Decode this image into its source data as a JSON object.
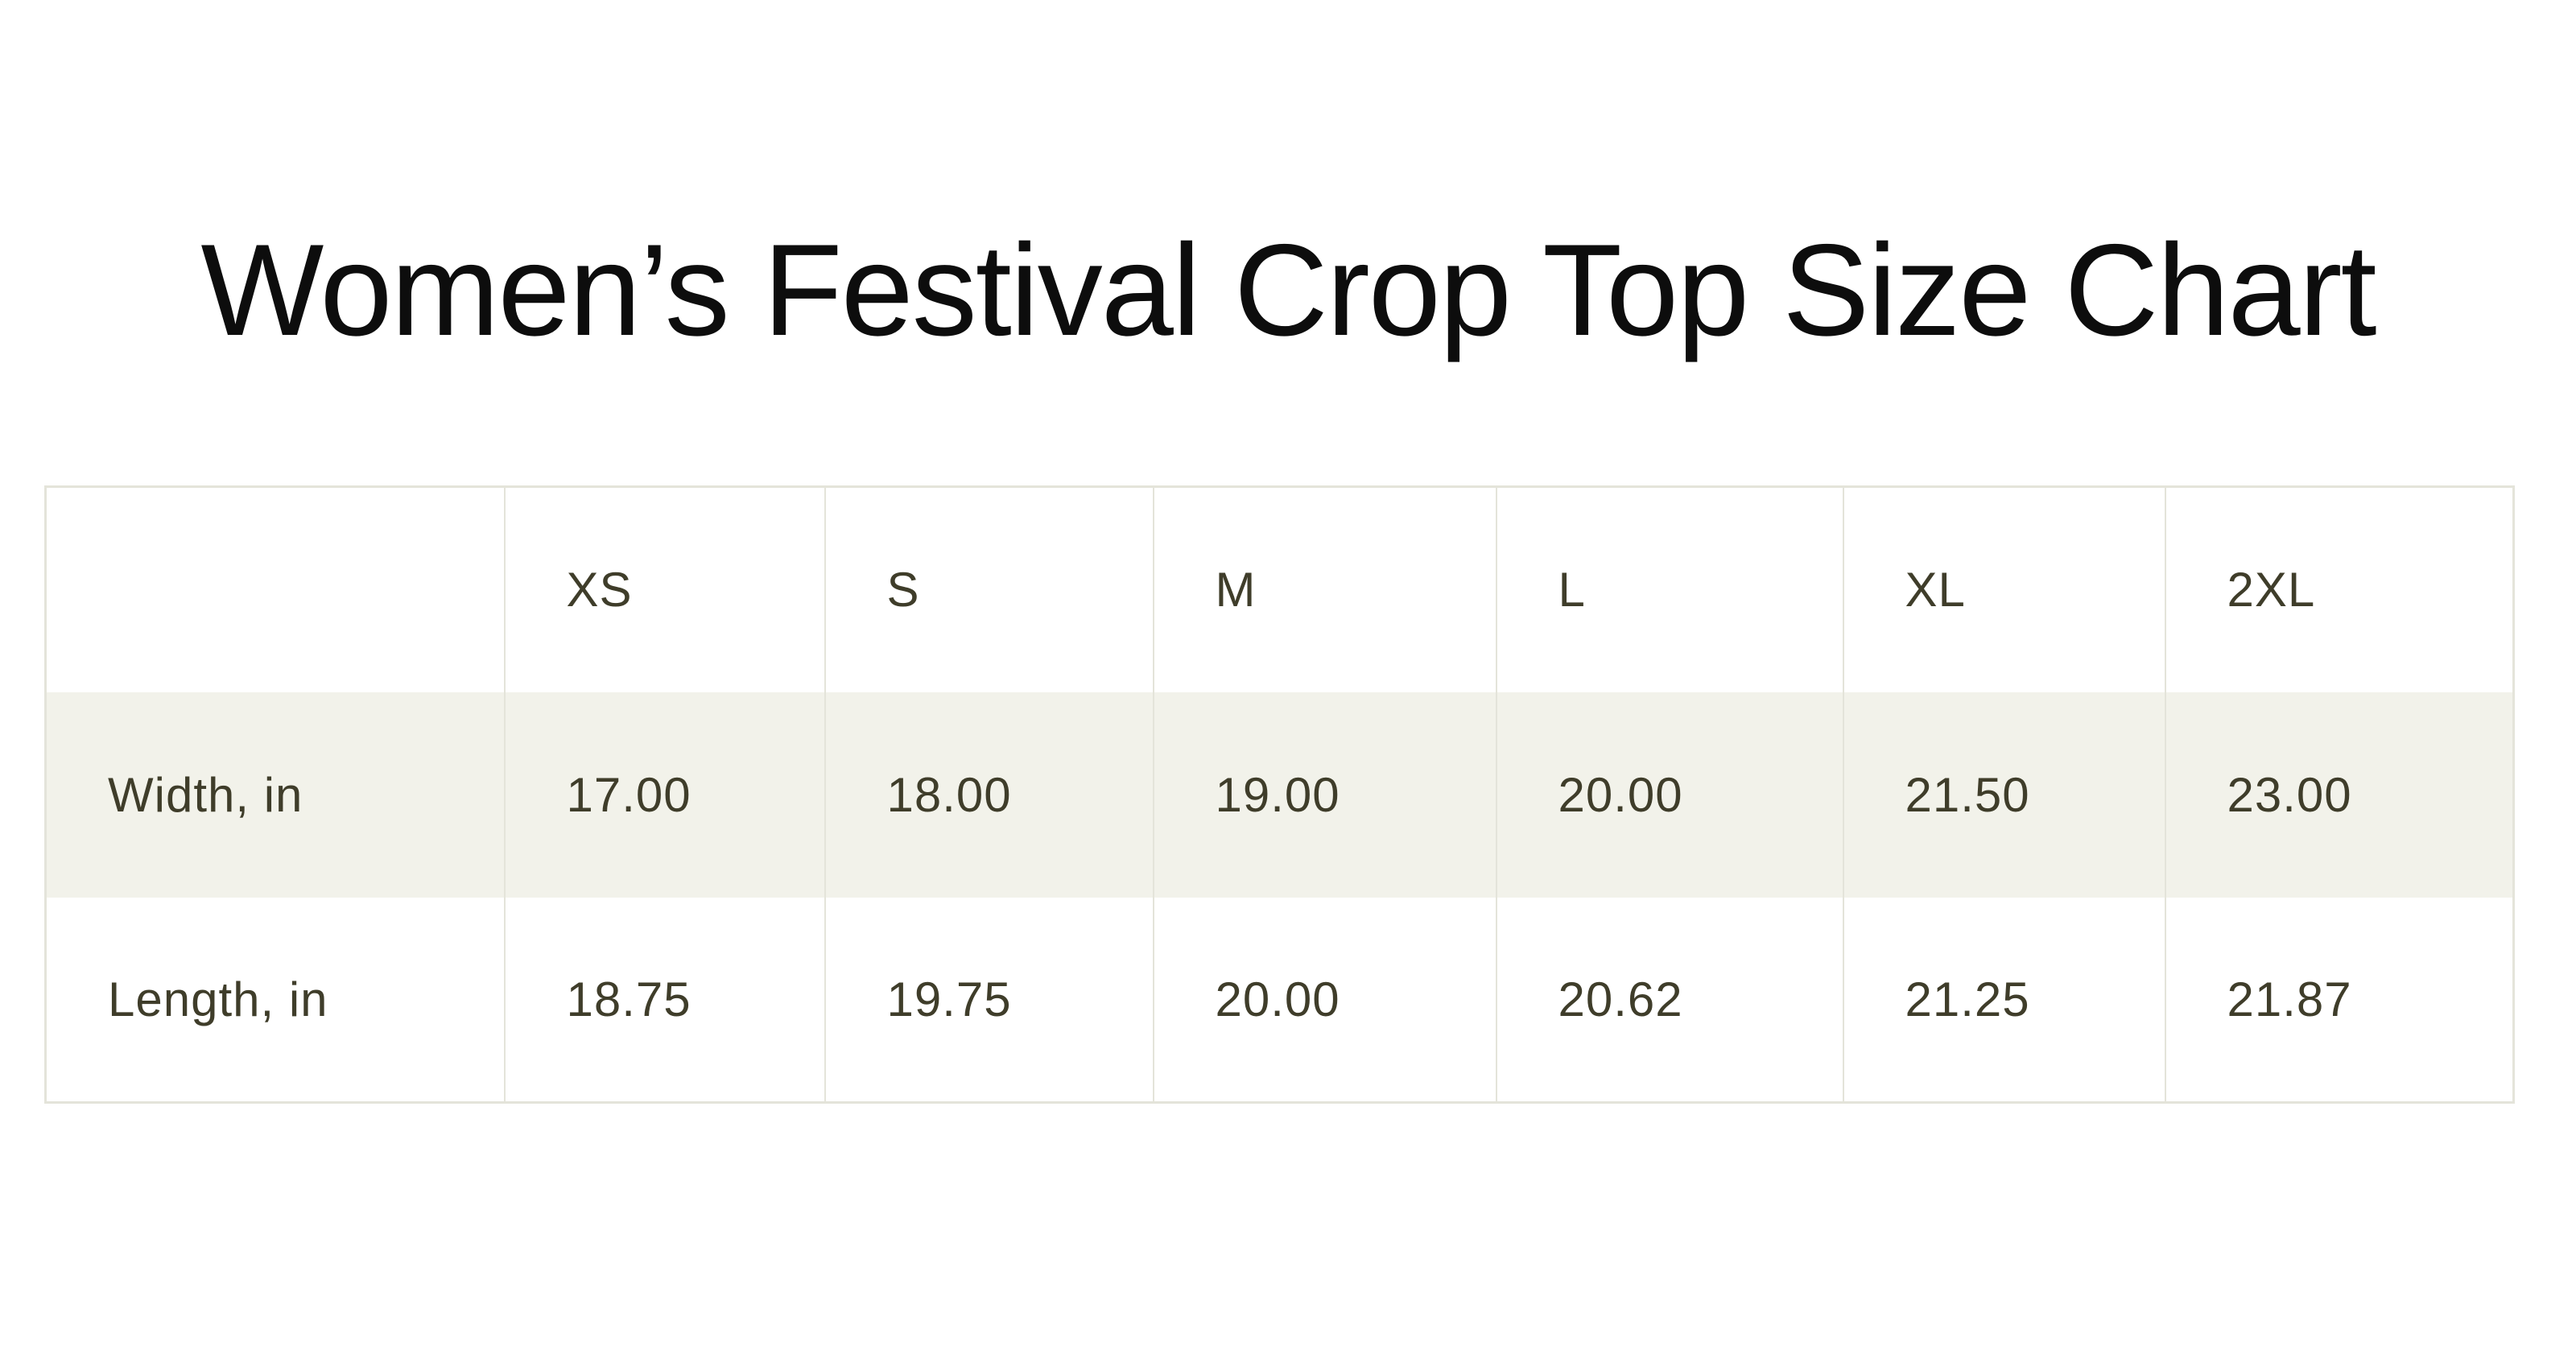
{
  "colors": {
    "background": "#ffffff",
    "title_text": "#0d0d0d",
    "table_text": "#3f3d2a",
    "shaded_row_bg": "#f2f2ea",
    "border": "#e4e4da"
  },
  "chart_data": {
    "type": "table",
    "title": "Women’s Festival Crop Top Size Chart",
    "columns": [
      "",
      "XS",
      "S",
      "M",
      "L",
      "XL",
      "2XL"
    ],
    "rows": [
      {
        "label": "Width, in",
        "values": [
          "17.00",
          "18.00",
          "19.00",
          "20.00",
          "21.50",
          "23.00"
        ]
      },
      {
        "label": "Length, in",
        "values": [
          "18.75",
          "19.75",
          "20.00",
          "20.62",
          "21.25",
          "21.87"
        ]
      }
    ],
    "layout": {
      "shaded_rows": [
        "Width, in"
      ],
      "grid": "vertical-separators-with-outer-frame"
    }
  }
}
